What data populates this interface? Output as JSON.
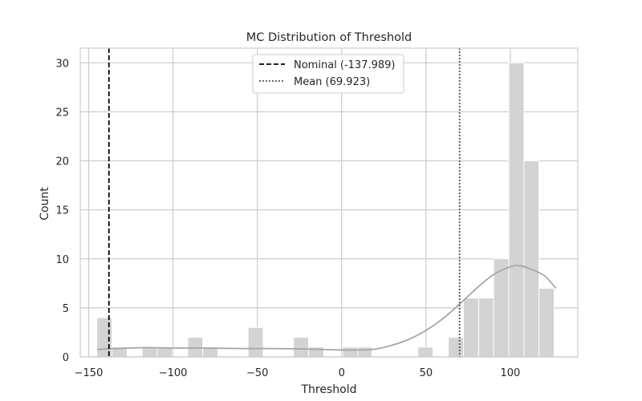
{
  "chart_data": {
    "type": "bar",
    "title": "MC Distribution of Threshold",
    "xlabel": "Threshold",
    "ylabel": "Count",
    "xlim": [
      -155,
      140
    ],
    "ylim": [
      0,
      31.5
    ],
    "xticks": [
      -150,
      -100,
      -50,
      0,
      50,
      100
    ],
    "xtick_labels": [
      "−150",
      "−100",
      "−50",
      "0",
      "50",
      "100"
    ],
    "yticks": [
      0,
      5,
      10,
      15,
      20,
      25,
      30
    ],
    "ytick_labels": [
      "0",
      "5",
      "10",
      "15",
      "20",
      "25",
      "30"
    ],
    "grid": true,
    "legend_position": "top-center",
    "bar_color": "#d3d3d3",
    "kde_color": "#a6a6a6",
    "bins": [
      {
        "x0": -145.2,
        "x1": -136.2,
        "count": 4
      },
      {
        "x0": -136.2,
        "x1": -127.2,
        "count": 1
      },
      {
        "x0": -118.3,
        "x1": -109.3,
        "count": 1
      },
      {
        "x0": -109.3,
        "x1": -100.3,
        "count": 1
      },
      {
        "x0": -91.3,
        "x1": -82.4,
        "count": 2
      },
      {
        "x0": -82.4,
        "x1": -73.4,
        "count": 1
      },
      {
        "x0": -55.5,
        "x1": -46.5,
        "count": 3
      },
      {
        "x0": -28.6,
        "x1": -19.6,
        "count": 2
      },
      {
        "x0": -19.6,
        "x1": -10.6,
        "count": 1
      },
      {
        "x0": 0.6,
        "x1": 9.6,
        "count": 1
      },
      {
        "x0": 9.6,
        "x1": 17.9,
        "count": 1
      },
      {
        "x0": 45.2,
        "x1": 54.2,
        "count": 1
      },
      {
        "x0": 63.2,
        "x1": 72.2,
        "count": 2
      },
      {
        "x0": 72.2,
        "x1": 81.2,
        "count": 6
      },
      {
        "x0": 81.2,
        "x1": 90.1,
        "count": 6
      },
      {
        "x0": 90.1,
        "x1": 99.1,
        "count": 10
      },
      {
        "x0": 99.1,
        "x1": 108.1,
        "count": 30
      },
      {
        "x0": 108.1,
        "x1": 117.0,
        "count": 20
      },
      {
        "x0": 117.0,
        "x1": 126.0,
        "count": 7
      }
    ],
    "kde": {
      "x": [
        -145,
        -135,
        -125,
        -115,
        -100,
        -80,
        -60,
        -40,
        -20,
        0,
        10,
        20,
        30,
        40,
        50,
        60,
        70,
        80,
        90,
        100,
        105,
        110,
        120,
        127
      ],
      "y": [
        0.75,
        0.85,
        0.9,
        0.95,
        0.9,
        0.9,
        0.85,
        0.85,
        0.8,
        0.7,
        0.7,
        0.8,
        1.2,
        1.8,
        2.7,
        3.9,
        5.4,
        7.0,
        8.4,
        9.2,
        9.3,
        9.1,
        8.3,
        7.0
      ]
    },
    "nominal": {
      "value": -137.989,
      "label": "Nominal (-137.989)",
      "color": "#000000"
    },
    "mean": {
      "value": 69.923,
      "label": "Mean (69.923)",
      "color": "#555555"
    }
  }
}
